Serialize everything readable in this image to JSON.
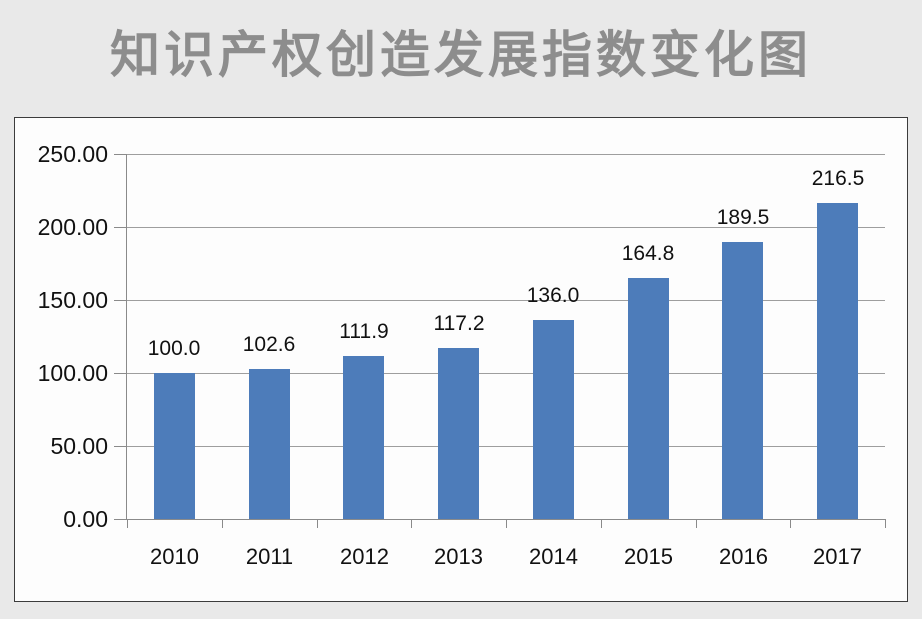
{
  "page": {
    "background_color": "#e9e9e9",
    "panel_background_color": "#fdfdfd",
    "panel_border_color": "#3c3c3c"
  },
  "chart_data": {
    "type": "bar",
    "title": "知识产权创造发展指数变化图",
    "title_color": "#8d8d8d",
    "categories": [
      "2010",
      "2011",
      "2012",
      "2013",
      "2014",
      "2015",
      "2016",
      "2017"
    ],
    "values": [
      100.0,
      102.6,
      111.9,
      117.2,
      136.0,
      164.8,
      189.5,
      216.5
    ],
    "value_labels": [
      "100.0",
      "102.6",
      "111.9",
      "117.2",
      "136.0",
      "164.8",
      "189.5",
      "216.5"
    ],
    "xlabel": "",
    "ylabel": "",
    "ylim": [
      0,
      250
    ],
    "y_ticks": [
      0,
      50,
      100,
      150,
      200,
      250
    ],
    "y_tick_labels": [
      "0.00",
      "50.00",
      "100.00",
      "150.00",
      "200.00",
      "250.00"
    ],
    "grid": true,
    "legend": false,
    "legend_position": "none",
    "bar_color": "#4d7cba",
    "gridline_color": "#9e9e9e",
    "axis_color": "#8a8a8a",
    "text_color": "#111111"
  }
}
